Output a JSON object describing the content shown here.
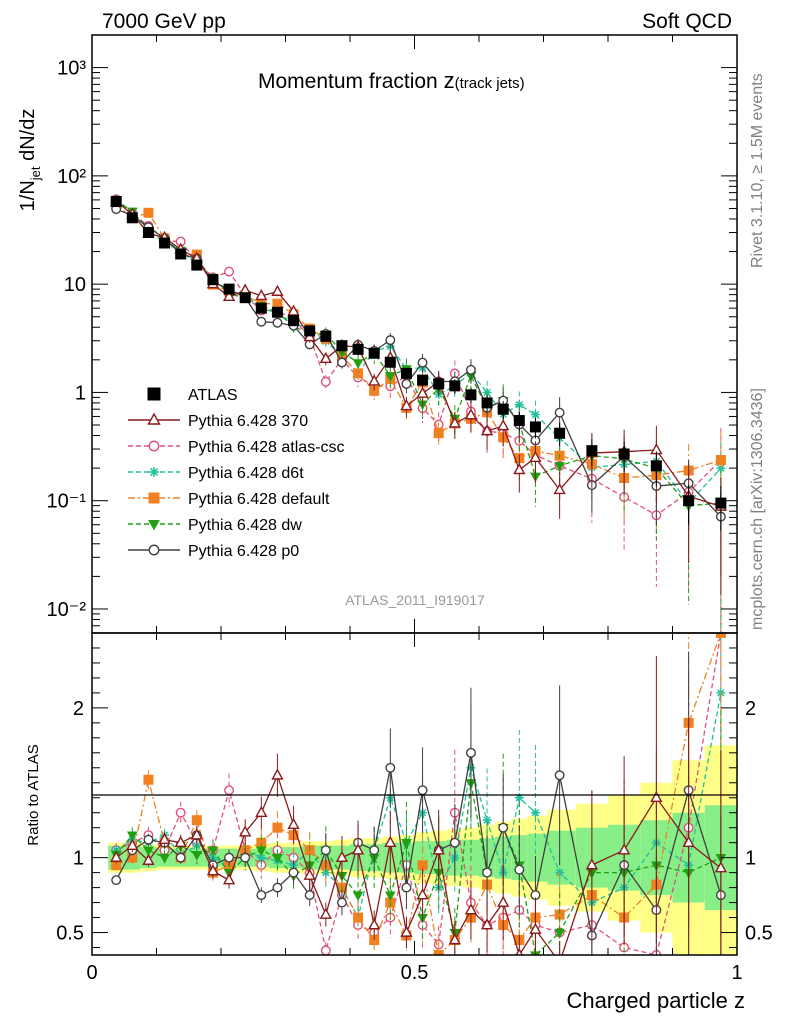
{
  "header": {
    "left": "7000 GeV pp",
    "right": "Soft QCD"
  },
  "side_text": {
    "top": "Rivet 3.1.10, ≥ 1.5M events",
    "bottom": "mcplots.cern.ch [arXiv:1306.3436]"
  },
  "chart_data": {
    "type": "line",
    "title_main": "Momentum fraction ",
    "title_z": "z",
    "title_sub": "(track jets)",
    "analysis_label": "ATLAS_2011_I919017",
    "xlabel": "Charged particle z",
    "ylabel_main": "1/N",
    "ylabel_sub": "jet",
    "ylabel_rest": " dN/dz",
    "ratio_ylabel": "Ratio to ATLAS",
    "x_ticks": [
      "0",
      "0.5",
      "1"
    ],
    "y_ticks": [
      "10⁻²",
      "10⁻¹",
      "1",
      "10",
      "10²",
      "10³"
    ],
    "ratio_ticks": [
      "0.5",
      "1",
      "2"
    ],
    "xlim": [
      0,
      1
    ],
    "ylim": [
      0.006,
      2000
    ],
    "yscale": "log",
    "ratio_ylim": [
      0.35,
      2.5
    ],
    "x": [
      0.0375,
      0.0625,
      0.0875,
      0.1125,
      0.1375,
      0.1625,
      0.1875,
      0.2125,
      0.2375,
      0.2625,
      0.2875,
      0.3125,
      0.3375,
      0.3625,
      0.3875,
      0.4125,
      0.4375,
      0.4625,
      0.4875,
      0.5125,
      0.5375,
      0.5625,
      0.5875,
      0.6125,
      0.6375,
      0.6625,
      0.6875,
      0.725,
      0.775,
      0.825,
      0.875,
      0.925,
      0.975
    ],
    "data_values": [
      58,
      41,
      30,
      24,
      19,
      15,
      11,
      9,
      7.5,
      6.0,
      5.5,
      4.6,
      3.7,
      3.3,
      2.7,
      2.5,
      2.3,
      1.9,
      1.5,
      1.3,
      1.2,
      1.15,
      0.95,
      0.8,
      0.7,
      0.55,
      0.48,
      0.42,
      0.29,
      0.27,
      0.21,
      0.1,
      0.095
    ],
    "band_inner": [
      0.08,
      0.08,
      0.07,
      0.06,
      0.06,
      0.06,
      0.06,
      0.06,
      0.06,
      0.06,
      0.07,
      0.07,
      0.08,
      0.08,
      0.08,
      0.09,
      0.09,
      0.1,
      0.1,
      0.11,
      0.11,
      0.12,
      0.12,
      0.13,
      0.14,
      0.15,
      0.16,
      0.18,
      0.2,
      0.22,
      0.25,
      0.3,
      0.35
    ],
    "band_outer": [
      0.1,
      0.1,
      0.09,
      0.08,
      0.08,
      0.08,
      0.08,
      0.08,
      0.08,
      0.09,
      0.1,
      0.1,
      0.11,
      0.11,
      0.12,
      0.13,
      0.13,
      0.14,
      0.15,
      0.17,
      0.18,
      0.19,
      0.2,
      0.22,
      0.24,
      0.26,
      0.28,
      0.32,
      0.36,
      0.42,
      0.5,
      0.65,
      0.75
    ],
    "legend_position": "center-left",
    "series": [
      {
        "name": "ATLAS",
        "color": "#000000",
        "marker": "square-filled",
        "line": "none"
      },
      {
        "name": "Pythia 6.428 370",
        "color": "#8b1a1a",
        "marker": "triangle-open",
        "line": "solid",
        "ratio": [
          1.0,
          1.08,
          0.98,
          1.12,
          1.1,
          1.15,
          0.91,
          0.85,
          1.17,
          1.3,
          1.55,
          1.22,
          0.88,
          0.62,
          1.0,
          1.05,
          0.55,
          1.1,
          0.5,
          0.75,
          1.05,
          0.45,
          0.65,
          0.55,
          0.7,
          0.35,
          0.52,
          0.3,
          0.95,
          1.05,
          1.4,
          1.1,
          0.93
        ]
      },
      {
        "name": "Pythia 6.428 atlas-csc",
        "color": "#e0507a",
        "marker": "circle-open",
        "line": "dashed",
        "ratio": [
          1.05,
          1.1,
          1.15,
          1.05,
          1.3,
          1.1,
          1.05,
          1.45,
          1.05,
          0.95,
          1.05,
          1.0,
          0.9,
          0.38,
          0.75,
          0.55,
          0.5,
          0.6,
          0.95,
          0.55,
          0.42,
          1.3,
          0.7,
          0.55,
          0.6,
          0.65,
          0.55,
          0.5,
          0.55,
          0.4,
          0.35,
          1.2,
          2.5
        ]
      },
      {
        "name": "Pythia 6.428 d6t",
        "color": "#20c0a0",
        "marker": "asterisk",
        "line": "dashed",
        "ratio": [
          1.05,
          1.12,
          1.1,
          1.15,
          1.02,
          1.08,
          1.0,
          0.95,
          1.05,
          1.0,
          0.98,
          0.95,
          1.05,
          0.9,
          0.8,
          0.6,
          1.05,
          1.4,
          1.1,
          1.3,
          0.8,
          1.0,
          1.6,
          1.25,
          0.9,
          1.4,
          1.3,
          0.9,
          0.7,
          0.8,
          1.1,
          0.95,
          2.1
        ]
      },
      {
        "name": "Pythia 6.428 default",
        "color": "#f08020",
        "marker": "square-filled",
        "line": "dashdot",
        "ratio": [
          0.95,
          1.0,
          1.52,
          1.1,
          1.0,
          1.25,
          0.9,
          0.95,
          1.05,
          1.1,
          1.2,
          1.15,
          1.05,
          0.95,
          0.8,
          0.6,
          0.45,
          0.7,
          0.48,
          0.95,
          0.35,
          0.45,
          0.6,
          0.82,
          0.55,
          0.45,
          0.6,
          0.62,
          0.75,
          0.6,
          0.82,
          1.9,
          2.5
        ]
      },
      {
        "name": "Pythia 6.428 dw",
        "color": "#20a010",
        "marker": "triangle-down-filled",
        "line": "dashed",
        "ratio": [
          1.02,
          1.15,
          1.05,
          1.0,
          1.08,
          1.02,
          1.05,
          0.9,
          1.0,
          1.05,
          1.0,
          0.88,
          0.95,
          1.05,
          0.88,
          0.75,
          1.0,
          0.75,
          1.1,
          0.6,
          0.9,
          0.5,
          1.5,
          0.9,
          1.2,
          0.95,
          0.35,
          0.5,
          0.9,
          0.9,
          0.95,
          0.9,
          1.0
        ]
      },
      {
        "name": "Pythia 6.428 p0",
        "color": "#404040",
        "marker": "circle-open",
        "line": "solid",
        "ratio": [
          0.85,
          1.05,
          1.12,
          1.1,
          1.0,
          1.15,
          0.95,
          1.0,
          1.0,
          0.75,
          0.8,
          0.9,
          0.75,
          1.05,
          0.7,
          1.1,
          1.05,
          1.6,
          0.8,
          1.45,
          1.05,
          1.1,
          1.7,
          0.9,
          1.2,
          0.92,
          0.75,
          1.55,
          0.48,
          0.95,
          0.65,
          1.45,
          0.75
        ]
      }
    ]
  }
}
